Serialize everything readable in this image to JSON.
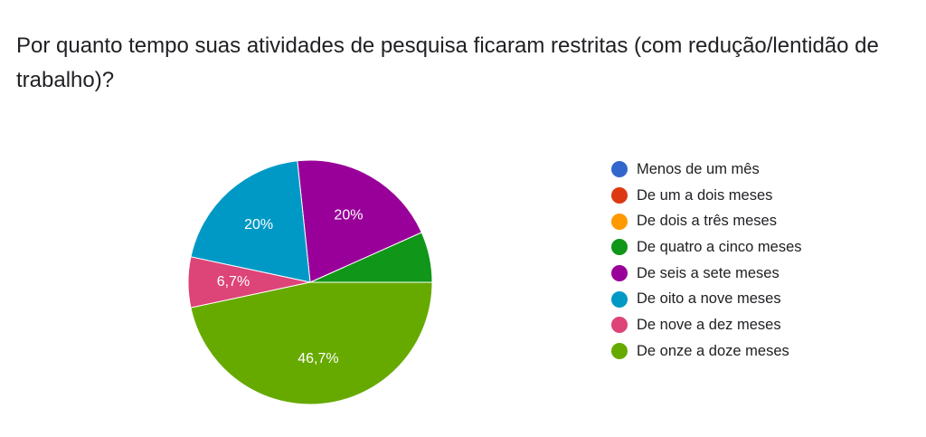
{
  "title": "Por quanto tempo suas atividades de pesquisa ficaram restritas (com redução/lentidão de trabalho)?",
  "chart_data": {
    "type": "pie",
    "categories": [
      "Menos de um mês",
      "De um a dois meses",
      "De dois a três meses",
      "De quatro a cinco meses",
      "De seis a sete meses",
      "De oito a nove meses",
      "De nove a dez meses",
      "De onze a doze meses"
    ],
    "values": [
      0,
      0,
      0,
      6.7,
      20,
      20,
      6.7,
      46.7
    ],
    "value_labels": [
      "",
      "",
      "",
      "",
      "20%",
      "20%",
      "6,7%",
      "46,7%"
    ],
    "colors": [
      "#3366cc",
      "#dc3912",
      "#ff9900",
      "#109618",
      "#990099",
      "#0099c6",
      "#dd4477",
      "#66aa00"
    ],
    "legend_position": "right"
  }
}
